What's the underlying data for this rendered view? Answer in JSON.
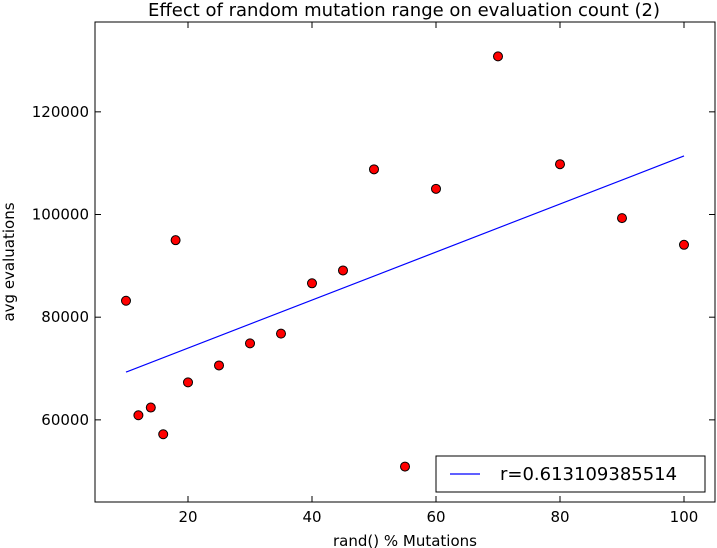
{
  "chart_data": {
    "type": "scatter",
    "title": "Effect of random mutation range on evaluation count (2)",
    "xlabel": "rand() % Mutations",
    "ylabel": "avg evaluations",
    "xlim": [
      5,
      105
    ],
    "ylim": [
      44000,
      137500
    ],
    "xticks": [
      20,
      40,
      60,
      80,
      100
    ],
    "yticks": [
      60000,
      80000,
      100000,
      120000
    ],
    "grid": false,
    "legend_position": "lower-right",
    "points": [
      {
        "x": 10,
        "y": 83200
      },
      {
        "x": 12,
        "y": 60900
      },
      {
        "x": 14,
        "y": 62400
      },
      {
        "x": 16,
        "y": 57200
      },
      {
        "x": 18,
        "y": 95000
      },
      {
        "x": 20,
        "y": 67300
      },
      {
        "x": 25,
        "y": 70600
      },
      {
        "x": 30,
        "y": 74900
      },
      {
        "x": 35,
        "y": 76800
      },
      {
        "x": 40,
        "y": 86600
      },
      {
        "x": 45,
        "y": 89100
      },
      {
        "x": 50,
        "y": 108800
      },
      {
        "x": 55,
        "y": 50900
      },
      {
        "x": 60,
        "y": 105000
      },
      {
        "x": 70,
        "y": 130800
      },
      {
        "x": 80,
        "y": 109800
      },
      {
        "x": 90,
        "y": 99300
      },
      {
        "x": 100,
        "y": 94100
      }
    ],
    "fit_line": {
      "x": [
        10,
        100
      ],
      "y": [
        69300,
        111400
      ]
    },
    "legend": [
      "r=0.613109385514"
    ],
    "colors": {
      "points": "#ff0000",
      "point_edge": "#000000",
      "line": "#0000ff"
    }
  }
}
